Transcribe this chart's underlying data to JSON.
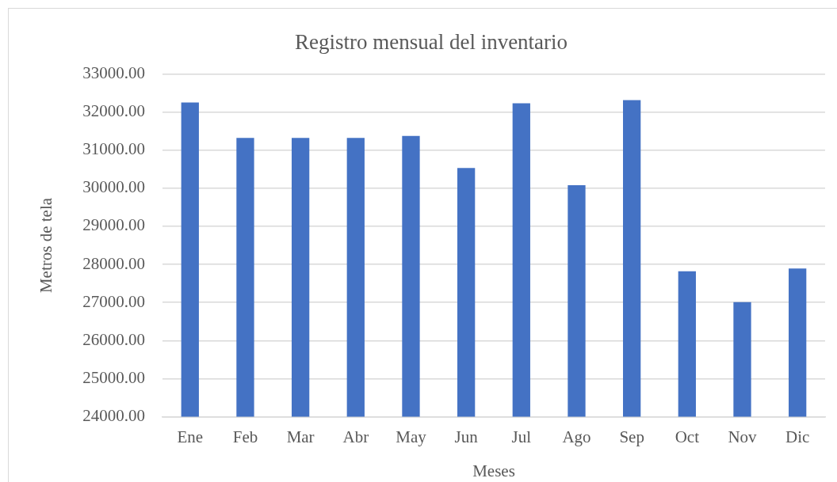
{
  "chart_data": {
    "type": "bar",
    "title": "Registro mensual del inventario",
    "xlabel": "Meses",
    "ylabel": "Metros de tela",
    "categories": [
      "Ene",
      "Feb",
      "Mar",
      "Abr",
      "May",
      "Jun",
      "Jul",
      "Ago",
      "Sep",
      "Oct",
      "Nov",
      "Dic"
    ],
    "values": [
      32250,
      31320,
      31320,
      31320,
      31370,
      30530,
      32230,
      30080,
      32310,
      27820,
      27010,
      27890
    ],
    "color": "#4472c4",
    "ylim": [
      24000,
      33000
    ],
    "yticks": [
      {
        "value": 24000,
        "label": "24000.00"
      },
      {
        "value": 25000,
        "label": "25000.00"
      },
      {
        "value": 26000,
        "label": "26000.00"
      },
      {
        "value": 27000,
        "label": "27000.00"
      },
      {
        "value": 28000,
        "label": "28000.00"
      },
      {
        "value": 29000,
        "label": "29000.00"
      },
      {
        "value": 30000,
        "label": "30000.00"
      },
      {
        "value": 31000,
        "label": "31000.00"
      },
      {
        "value": 32000,
        "label": "32000.00"
      },
      {
        "value": 33000,
        "label": "33000.00"
      }
    ],
    "grid": "y"
  }
}
